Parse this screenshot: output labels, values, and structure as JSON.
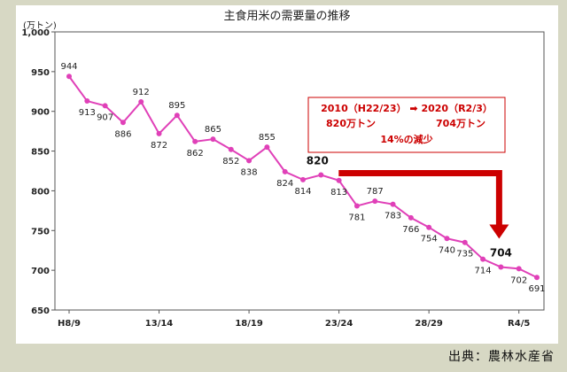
{
  "chart_data": {
    "type": "line",
    "title": "主食用米の需要量の推移",
    "ylabel": "(万トン)",
    "xlabel": "",
    "ylim": [
      650,
      1000
    ],
    "yticks": [
      "650",
      "700",
      "750",
      "800",
      "850",
      "900",
      "950",
      "1,000"
    ],
    "x_tick_labels": [
      "H8/9",
      "13/14",
      "18/19",
      "23/24",
      "28/29",
      "R4/5"
    ],
    "grid": false,
    "line_color": "#e040b8",
    "series": [
      {
        "values": [
          944,
          913,
          907,
          886,
          912,
          872,
          895,
          862,
          865,
          852,
          838,
          855,
          824,
          814,
          820,
          813,
          781,
          787,
          783,
          766,
          754,
          740,
          735,
          714,
          704,
          702,
          691
        ],
        "labels": [
          "944",
          "913",
          "907",
          "886",
          "912",
          "872",
          "895",
          "862",
          "865",
          "852",
          "838",
          "855",
          "824",
          "814",
          "",
          "813",
          "781",
          "787",
          "783",
          "766",
          "754",
          "740",
          "735",
          "714",
          "",
          "702",
          "691"
        ]
      }
    ],
    "annotations": {
      "box_line1": "2010（H22/23） ➡ 2020（R2/3）",
      "box_line2_left": "820万トン",
      "box_line2_right": "704万トン",
      "box_line3": "14%の減少",
      "box_color": "#cc0000",
      "highlight_start": "820",
      "highlight_end": "704"
    }
  },
  "source": "出典：農林水産省"
}
